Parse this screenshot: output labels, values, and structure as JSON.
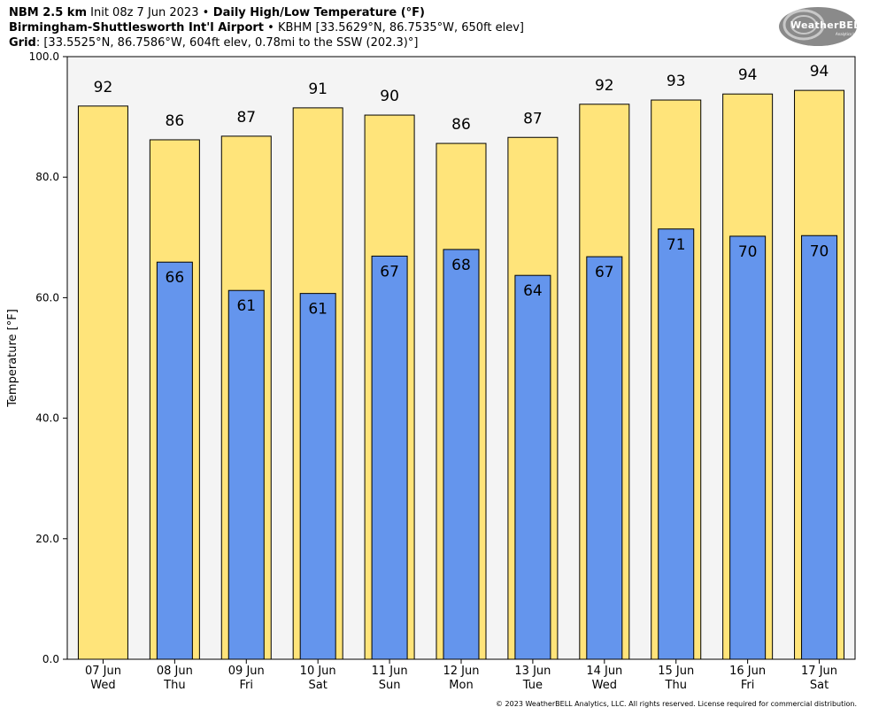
{
  "header": {
    "line1_model": "NBM 2.5 km",
    "line1_init": " Init 08z 7 Jun 2023 ",
    "line1_sep": "•",
    "line1_product": " Daily High/Low Temperature (°F)",
    "line2_station": "Birmingham-Shuttlesworth Int'l Airport",
    "line2_rest": " • KBHM [33.5629°N, 86.7535°W, 650ft elev]",
    "line3_label": "Grid",
    "line3_rest": ": [33.5525°N, 86.7586°W, 604ft elev, 0.78mi to the SSW (202.3)°]"
  },
  "logo": {
    "text": "WeatherBELL",
    "sub": "Analytics LLC"
  },
  "copyright": "© 2023 WeatherBELL Analytics, LLC. All rights reserved. License required for commercial distribution.",
  "colors": {
    "high": "#ffe47a",
    "low": "#6495ed",
    "plot_bg": "#f4f4f4"
  },
  "chart_data": {
    "type": "bar",
    "ylabel": "Temperature [°F]",
    "ylim": [
      0,
      100
    ],
    "yticks": [
      "0.0",
      "20.0",
      "40.0",
      "60.0",
      "80.0",
      "100.0"
    ],
    "ytick_values": [
      0,
      20,
      40,
      60,
      80,
      100
    ],
    "categories": [
      {
        "date": "07 Jun",
        "day": "Wed"
      },
      {
        "date": "08 Jun",
        "day": "Thu"
      },
      {
        "date": "09 Jun",
        "day": "Fri"
      },
      {
        "date": "10 Jun",
        "day": "Sat"
      },
      {
        "date": "11 Jun",
        "day": "Sun"
      },
      {
        "date": "12 Jun",
        "day": "Mon"
      },
      {
        "date": "13 Jun",
        "day": "Tue"
      },
      {
        "date": "14 Jun",
        "day": "Wed"
      },
      {
        "date": "15 Jun",
        "day": "Thu"
      },
      {
        "date": "16 Jun",
        "day": "Fri"
      },
      {
        "date": "17 Jun",
        "day": "Sat"
      }
    ],
    "series": [
      {
        "values": [
          91.8,
          86.2,
          86.8,
          91.5,
          90.3,
          85.6,
          86.6,
          92.1,
          92.8,
          93.8,
          94.4
        ],
        "labels": [
          "92",
          "86",
          "87",
          "91",
          "90",
          "86",
          "87",
          "92",
          "93",
          "94",
          "94"
        ]
      },
      {
        "values": [
          null,
          65.9,
          61.2,
          60.7,
          66.9,
          68.0,
          63.7,
          66.8,
          71.4,
          70.2,
          70.3
        ],
        "labels": [
          null,
          "66",
          "61",
          "61",
          "67",
          "68",
          "64",
          "67",
          "71",
          "70",
          "70"
        ]
      }
    ]
  }
}
